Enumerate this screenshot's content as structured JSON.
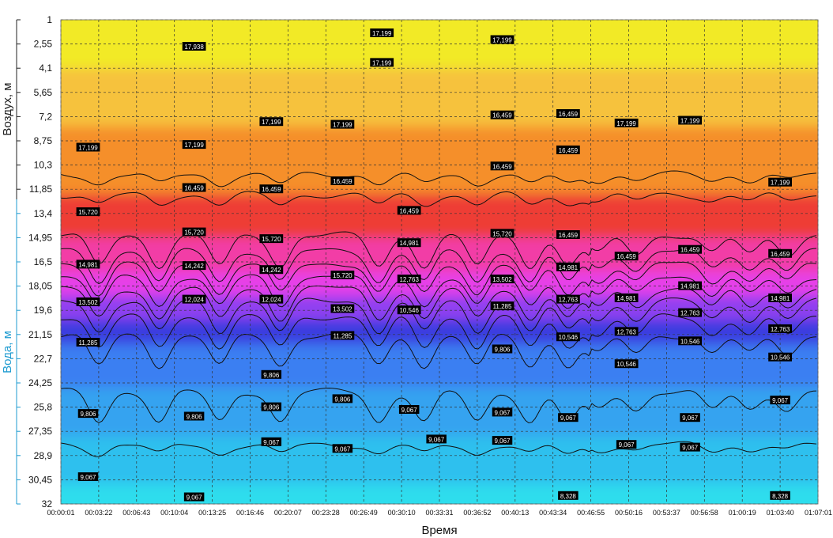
{
  "chart_data": {
    "type": "heatmap",
    "title": "",
    "xlabel": "Время",
    "ylabel_air": "Воздух, м",
    "ylabel_water": "Вода, м",
    "air_color": "#222222",
    "water_color": "#1e9bd0",
    "y_air_range": [
      1,
      11.85
    ],
    "y_water_range": [
      11.85,
      32
    ],
    "ylim": [
      1,
      32
    ],
    "y_ticks": [
      "1",
      "2,55",
      "4,1",
      "5,65",
      "7,2",
      "8,75",
      "10,3",
      "11,85",
      "13,4",
      "14,95",
      "16,5",
      "18,05",
      "19,6",
      "21,15",
      "22,7",
      "24,25",
      "25,8",
      "27,35",
      "28,9",
      "30,45",
      "32"
    ],
    "x_ticks": [
      "00:00:01",
      "00:03:22",
      "00:06:43",
      "00:10:04",
      "00:13:25",
      "00:16:46",
      "00:20:07",
      "00:23:28",
      "00:26:49",
      "00:30:10",
      "00:33:31",
      "00:36:52",
      "00:40:13",
      "00:43:34",
      "00:46:55",
      "00:50:16",
      "00:53:37",
      "00:56:58",
      "01:00:19",
      "01:03:40",
      "01:07:01"
    ],
    "grid": true,
    "colorscale": [
      {
        "value": 17.9,
        "color": "#f2ea28"
      },
      {
        "value": 17.2,
        "color": "#f6c23c"
      },
      {
        "value": 16.5,
        "color": "#f58f2c"
      },
      {
        "value": 15.7,
        "color": "#ee3e35"
      },
      {
        "value": 14.9,
        "color": "#f23ea6"
      },
      {
        "value": 14.2,
        "color": "#e63fe8"
      },
      {
        "value": 12.8,
        "color": "#8f3ff0"
      },
      {
        "value": 12.0,
        "color": "#3b3ce0"
      },
      {
        "value": 11.3,
        "color": "#3b7ff2"
      },
      {
        "value": 9.8,
        "color": "#35a3f0"
      },
      {
        "value": 9.1,
        "color": "#2fc0ee"
      },
      {
        "value": 8.3,
        "color": "#2edded"
      }
    ],
    "contour_levels": [
      "17,938",
      "17,199",
      "16,459",
      "15,720",
      "14,981",
      "14,242",
      "13,502",
      "12,763",
      "12,024",
      "11,285",
      "10,546",
      "9,806",
      "9,067",
      "8,328"
    ],
    "isolines": [
      {
        "level": "17,199",
        "depth": 10.9
      },
      {
        "level": "16,459",
        "depth": 12.2
      },
      {
        "level": "15,720",
        "depth": 14.8
      },
      {
        "level": "14,981",
        "depth": 15.8
      },
      {
        "level": "14,242",
        "depth": 16.6
      },
      {
        "level": "13,502",
        "depth": 17.4
      },
      {
        "level": "12,763",
        "depth": 18.2
      },
      {
        "level": "12,024",
        "depth": 19.0
      },
      {
        "level": "11,285",
        "depth": 20.0
      },
      {
        "level": "10,546",
        "depth": 21.2
      },
      {
        "level": "9,806",
        "depth": 24.8
      },
      {
        "level": "9,067",
        "depth": 28.2
      }
    ],
    "contour_labels": [
      {
        "text": "17,938",
        "x": 0.176,
        "y": 2.0
      },
      {
        "text": "17,199",
        "x": 0.424,
        "y": 1.0
      },
      {
        "text": "17,199",
        "x": 0.424,
        "y": 3.2
      },
      {
        "text": "17,199",
        "x": 0.583,
        "y": 1.5
      },
      {
        "text": "17,199",
        "x": 0.278,
        "y": 7.6
      },
      {
        "text": "17,199",
        "x": 0.372,
        "y": 7.8
      },
      {
        "text": "17,199",
        "x": 0.036,
        "y": 9.5
      },
      {
        "text": "17,199",
        "x": 0.176,
        "y": 9.3
      },
      {
        "text": "17,199",
        "x": 0.747,
        "y": 7.7
      },
      {
        "text": "17,199",
        "x": 0.831,
        "y": 7.5
      },
      {
        "text": "17,199",
        "x": 0.95,
        "y": 12.1
      },
      {
        "text": "16,459",
        "x": 0.583,
        "y": 7.1
      },
      {
        "text": "16,459",
        "x": 0.67,
        "y": 7.0
      },
      {
        "text": "16,459",
        "x": 0.67,
        "y": 9.7
      },
      {
        "text": "16,459",
        "x": 0.583,
        "y": 10.9
      },
      {
        "text": "16,459",
        "x": 0.372,
        "y": 12.0
      },
      {
        "text": "16,459",
        "x": 0.176,
        "y": 12.5
      },
      {
        "text": "16,459",
        "x": 0.278,
        "y": 12.6
      },
      {
        "text": "16,459",
        "x": 0.46,
        "y": 14.2
      },
      {
        "text": "16,459",
        "x": 0.67,
        "y": 16.0
      },
      {
        "text": "16,459",
        "x": 0.747,
        "y": 17.6
      },
      {
        "text": "16,459",
        "x": 0.831,
        "y": 17.1
      },
      {
        "text": "16,459",
        "x": 0.95,
        "y": 17.4
      },
      {
        "text": "15,720",
        "x": 0.036,
        "y": 14.3
      },
      {
        "text": "15,720",
        "x": 0.176,
        "y": 15.8
      },
      {
        "text": "15,720",
        "x": 0.278,
        "y": 16.3
      },
      {
        "text": "15,720",
        "x": 0.583,
        "y": 15.9
      },
      {
        "text": "15,720",
        "x": 0.372,
        "y": 19.0
      },
      {
        "text": "14,981",
        "x": 0.46,
        "y": 16.6
      },
      {
        "text": "14,981",
        "x": 0.036,
        "y": 18.2
      },
      {
        "text": "14,981",
        "x": 0.67,
        "y": 18.4
      },
      {
        "text": "14,981",
        "x": 0.831,
        "y": 19.8
      },
      {
        "text": "14,981",
        "x": 0.747,
        "y": 20.7
      },
      {
        "text": "14,981",
        "x": 0.95,
        "y": 20.7
      },
      {
        "text": "14,242",
        "x": 0.176,
        "y": 18.3
      },
      {
        "text": "14,242",
        "x": 0.278,
        "y": 18.6
      },
      {
        "text": "13,502",
        "x": 0.583,
        "y": 19.3
      },
      {
        "text": "13,502",
        "x": 0.036,
        "y": 21.0
      },
      {
        "text": "13,502",
        "x": 0.372,
        "y": 21.5
      },
      {
        "text": "12,763",
        "x": 0.46,
        "y": 19.3
      },
      {
        "text": "12,763",
        "x": 0.67,
        "y": 20.8
      },
      {
        "text": "12,763",
        "x": 0.831,
        "y": 21.8
      },
      {
        "text": "12,763",
        "x": 0.747,
        "y": 23.2
      },
      {
        "text": "12,763",
        "x": 0.95,
        "y": 23.0
      },
      {
        "text": "12,024",
        "x": 0.176,
        "y": 20.8
      },
      {
        "text": "12,024",
        "x": 0.278,
        "y": 20.8
      },
      {
        "text": "11,285",
        "x": 0.583,
        "y": 21.3
      },
      {
        "text": "11,285",
        "x": 0.372,
        "y": 23.5
      },
      {
        "text": "11,285",
        "x": 0.036,
        "y": 24.0
      },
      {
        "text": "10,546",
        "x": 0.46,
        "y": 21.6
      },
      {
        "text": "10,546",
        "x": 0.67,
        "y": 23.6
      },
      {
        "text": "10,546",
        "x": 0.831,
        "y": 23.9
      },
      {
        "text": "10,546",
        "x": 0.747,
        "y": 25.6
      },
      {
        "text": "10,546",
        "x": 0.95,
        "y": 25.1
      },
      {
        "text": "9,806",
        "x": 0.583,
        "y": 24.5
      },
      {
        "text": "9,806",
        "x": 0.278,
        "y": 26.4
      },
      {
        "text": "9,806",
        "x": 0.036,
        "y": 29.3
      },
      {
        "text": "9,806",
        "x": 0.176,
        "y": 29.5
      },
      {
        "text": "9,806",
        "x": 0.372,
        "y": 28.2
      },
      {
        "text": "9,806",
        "x": 0.278,
        "y": 28.8
      },
      {
        "text": "9,067",
        "x": 0.46,
        "y": 29.0
      },
      {
        "text": "9,067",
        "x": 0.583,
        "y": 29.2
      },
      {
        "text": "9,067",
        "x": 0.67,
        "y": 29.6
      },
      {
        "text": "9,067",
        "x": 0.831,
        "y": 29.6
      },
      {
        "text": "9,067",
        "x": 0.95,
        "y": 28.3
      },
      {
        "text": "9,067",
        "x": 0.278,
        "y": 31.4
      },
      {
        "text": "9,067",
        "x": 0.372,
        "y": 31.9
      },
      {
        "text": "9,067",
        "x": 0.496,
        "y": 31.2
      },
      {
        "text": "9,067",
        "x": 0.583,
        "y": 31.3
      },
      {
        "text": "9,067",
        "x": 0.747,
        "y": 31.6
      },
      {
        "text": "9,067",
        "x": 0.831,
        "y": 31.8
      },
      {
        "text": "9,067",
        "x": 0.036,
        "y": 34.0
      },
      {
        "text": "9,067",
        "x": 0.176,
        "y": 35.5
      },
      {
        "text": "8,328",
        "x": 0.67,
        "y": 35.4
      },
      {
        "text": "8,328",
        "x": 0.95,
        "y": 35.4
      }
    ]
  }
}
